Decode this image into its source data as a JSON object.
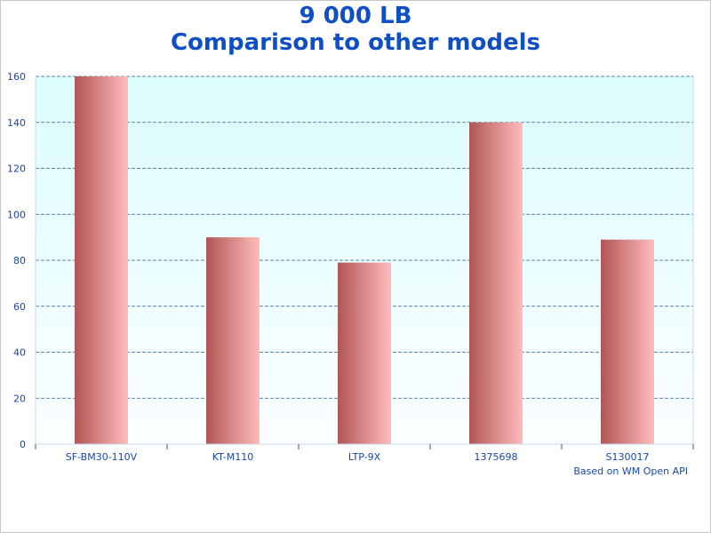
{
  "chart_data": {
    "type": "bar",
    "title": "9 000 LB",
    "subtitle": "Comparison to other models",
    "categories": [
      "SF-BM30-110V",
      "KT-M110",
      "LTP-9X",
      "1375698",
      "S130017"
    ],
    "values": [
      160,
      90,
      79,
      140,
      89
    ],
    "ylim": [
      0,
      160
    ],
    "yticks": [
      0,
      20,
      40,
      60,
      80,
      100,
      120,
      140,
      160
    ],
    "grid": true,
    "legend": "none",
    "credit": "Based on WM Open API",
    "colors": {
      "bar_dark": "#b25556",
      "bar_light": "#ffbcbc",
      "plot_top": "#dcfdff",
      "plot_bottom": "#fbfeff",
      "grid": "#2d5c8f",
      "axis": "#c9dbe6",
      "text": "#1747a8",
      "title": "#0f4fc4"
    }
  }
}
